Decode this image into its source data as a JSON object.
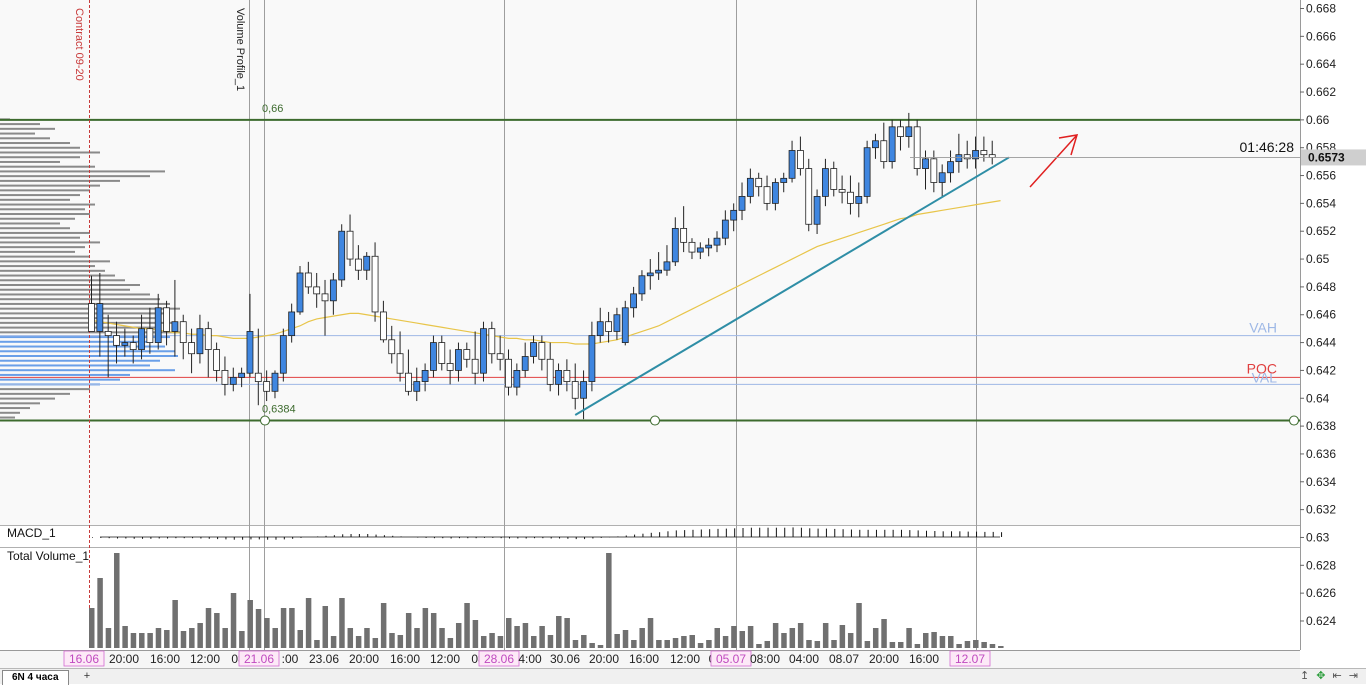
{
  "instrument_tab": "6N 4 часа",
  "add_tab_label": "+",
  "nav_icons": [
    "arrow-up-icon",
    "expand-icon",
    "scroll-left-icon",
    "scroll-right-icon"
  ],
  "colors": {
    "bull": "#3f86e0",
    "bear": "#ffffff",
    "sma": "#e8c54a",
    "trendline": "#2f8ea6",
    "level": "#3d6b2e",
    "vah_val": "#9eb8e6",
    "poc": "#e04040",
    "arrow": "#e02020",
    "profile": "#8a8a8a",
    "profile_value_area": "#6a9fe8",
    "volume": "#707070"
  },
  "chart_data": {
    "type": "candlestick",
    "timeframe": "4h",
    "y_ticks": [
      0.668,
      0.666,
      0.664,
      0.662,
      0.66,
      0.658,
      0.656,
      0.654,
      0.652,
      0.65,
      0.648,
      0.646,
      0.644,
      0.642,
      0.64,
      0.638,
      0.636,
      0.634,
      0.632,
      0.63,
      0.628,
      0.626,
      0.624
    ],
    "ylim": [
      0.6221,
      0.6693
    ],
    "last_price": "0.6573",
    "countdown": "01:46:28",
    "x_labels": [
      {
        "text": "16.06",
        "highlight": true
      },
      {
        "text": "20:00",
        "highlight": false
      },
      {
        "text": "16:00",
        "highlight": false
      },
      {
        "text": "12:00",
        "highlight": false
      },
      {
        "text": "08",
        "highlight": false
      },
      {
        "text": "21.06",
        "highlight": true
      },
      {
        "text": ":00",
        "highlight": false
      },
      {
        "text": "23.06",
        "highlight": false
      },
      {
        "text": "20:00",
        "highlight": false
      },
      {
        "text": "16:00",
        "highlight": false
      },
      {
        "text": "12:00",
        "highlight": false
      },
      {
        "text": "08",
        "highlight": false
      },
      {
        "text": "28.06",
        "highlight": true
      },
      {
        "text": "4:00",
        "highlight": false
      },
      {
        "text": "30.06",
        "highlight": false
      },
      {
        "text": "20:00",
        "highlight": false
      },
      {
        "text": "16:00",
        "highlight": false
      },
      {
        "text": "12:00",
        "highlight": false
      },
      {
        "text": "0",
        "highlight": false
      },
      {
        "text": "05.07",
        "highlight": true
      },
      {
        "text": "08:00",
        "highlight": false
      },
      {
        "text": "04:00",
        "highlight": false
      },
      {
        "text": "08.07",
        "highlight": false
      },
      {
        "text": "20:00",
        "highlight": false
      },
      {
        "text": "16:00",
        "highlight": false
      },
      {
        "text": "12.07",
        "highlight": true
      }
    ],
    "annotations": {
      "contract_label": "Contract 09-20",
      "volume_profile_label": "Volume Profile_1",
      "level_high": "0,66",
      "level_low": "0,6384",
      "vah": "VAH",
      "poc": "POC",
      "val": "VAL",
      "vah_price": 0.6445,
      "poc_price": 0.6415,
      "val_price": 0.641,
      "level_high_price": 0.66,
      "level_low_price": 0.6384
    },
    "macd_label": "MACD_1",
    "volume_label": "Total Volume_1",
    "candles": [
      [
        0.6468,
        0.6488,
        0.6452,
        0.6448
      ],
      [
        0.6448,
        0.649,
        0.643,
        0.6468
      ],
      [
        0.6448,
        0.646,
        0.6415,
        0.6445
      ],
      [
        0.6445,
        0.6455,
        0.6425,
        0.6438
      ],
      [
        0.6438,
        0.645,
        0.643,
        0.644
      ],
      [
        0.644,
        0.6445,
        0.6425,
        0.6435
      ],
      [
        0.6435,
        0.646,
        0.6428,
        0.645
      ],
      [
        0.645,
        0.6465,
        0.6432,
        0.644
      ],
      [
        0.644,
        0.6475,
        0.6435,
        0.6465
      ],
      [
        0.6465,
        0.647,
        0.6438,
        0.6448
      ],
      [
        0.6448,
        0.6485,
        0.643,
        0.6455
      ],
      [
        0.6455,
        0.646,
        0.6428,
        0.644
      ],
      [
        0.644,
        0.645,
        0.6418,
        0.6432
      ],
      [
        0.6432,
        0.646,
        0.6425,
        0.645
      ],
      [
        0.645,
        0.6455,
        0.6415,
        0.6435
      ],
      [
        0.6435,
        0.644,
        0.6412,
        0.642
      ],
      [
        0.642,
        0.643,
        0.6402,
        0.641
      ],
      [
        0.641,
        0.6422,
        0.6405,
        0.6415
      ],
      [
        0.6415,
        0.6422,
        0.6408,
        0.6418
      ],
      [
        0.6418,
        0.6475,
        0.6415,
        0.6448
      ],
      [
        0.6418,
        0.645,
        0.6395,
        0.6412
      ],
      [
        0.6412,
        0.642,
        0.6398,
        0.6405
      ],
      [
        0.6405,
        0.642,
        0.64,
        0.6418
      ],
      [
        0.6418,
        0.645,
        0.6412,
        0.6445
      ],
      [
        0.6445,
        0.6468,
        0.644,
        0.6462
      ],
      [
        0.6462,
        0.6495,
        0.646,
        0.649
      ],
      [
        0.649,
        0.6498,
        0.6475,
        0.648
      ],
      [
        0.648,
        0.649,
        0.6465,
        0.6475
      ],
      [
        0.6475,
        0.6485,
        0.6445,
        0.647
      ],
      [
        0.647,
        0.649,
        0.646,
        0.6485
      ],
      [
        0.6485,
        0.6525,
        0.648,
        0.652
      ],
      [
        0.652,
        0.6532,
        0.6495,
        0.65
      ],
      [
        0.65,
        0.651,
        0.6485,
        0.6492
      ],
      [
        0.6492,
        0.6505,
        0.6485,
        0.6502
      ],
      [
        0.6502,
        0.6512,
        0.6455,
        0.6462
      ],
      [
        0.6462,
        0.647,
        0.644,
        0.6442
      ],
      [
        0.6442,
        0.6452,
        0.6425,
        0.6432
      ],
      [
        0.6432,
        0.6448,
        0.6412,
        0.6418
      ],
      [
        0.6418,
        0.6435,
        0.6402,
        0.6405
      ],
      [
        0.6405,
        0.6422,
        0.6398,
        0.6412
      ],
      [
        0.6412,
        0.6425,
        0.6405,
        0.642
      ],
      [
        0.642,
        0.6445,
        0.6415,
        0.644
      ],
      [
        0.644,
        0.6445,
        0.642,
        0.6425
      ],
      [
        0.6425,
        0.6435,
        0.641,
        0.642
      ],
      [
        0.642,
        0.644,
        0.6412,
        0.6435
      ],
      [
        0.6435,
        0.644,
        0.6422,
        0.6428
      ],
      [
        0.6428,
        0.6448,
        0.641,
        0.6418
      ],
      [
        0.6418,
        0.6455,
        0.6412,
        0.645
      ],
      [
        0.645,
        0.6455,
        0.6425,
        0.6432
      ],
      [
        0.6432,
        0.6445,
        0.642,
        0.6428
      ],
      [
        0.6428,
        0.6435,
        0.6402,
        0.6408
      ],
      [
        0.6408,
        0.6425,
        0.6402,
        0.642
      ],
      [
        0.642,
        0.644,
        0.6415,
        0.643
      ],
      [
        0.643,
        0.6445,
        0.6425,
        0.644
      ],
      [
        0.644,
        0.6445,
        0.642,
        0.6428
      ],
      [
        0.6428,
        0.644,
        0.6405,
        0.641
      ],
      [
        0.641,
        0.6425,
        0.6402,
        0.642
      ],
      [
        0.642,
        0.6428,
        0.6405,
        0.6412
      ],
      [
        0.6412,
        0.6425,
        0.6392,
        0.64
      ],
      [
        0.64,
        0.642,
        0.6385,
        0.6412
      ],
      [
        0.6412,
        0.6455,
        0.6405,
        0.6445
      ],
      [
        0.6445,
        0.6465,
        0.644,
        0.6455
      ],
      [
        0.6455,
        0.6462,
        0.644,
        0.6448
      ],
      [
        0.6448,
        0.6465,
        0.6442,
        0.646
      ],
      [
        0.644,
        0.647,
        0.6438,
        0.6465
      ],
      [
        0.6465,
        0.648,
        0.6458,
        0.6475
      ],
      [
        0.6475,
        0.6492,
        0.647,
        0.6488
      ],
      [
        0.6488,
        0.65,
        0.6478,
        0.649
      ],
      [
        0.649,
        0.6505,
        0.6485,
        0.6492
      ],
      [
        0.6492,
        0.651,
        0.6488,
        0.6498
      ],
      [
        0.6498,
        0.653,
        0.6495,
        0.6522
      ],
      [
        0.6522,
        0.6538,
        0.6505,
        0.6512
      ],
      [
        0.6512,
        0.6515,
        0.65,
        0.6505
      ],
      [
        0.6505,
        0.6512,
        0.65,
        0.6508
      ],
      [
        0.6508,
        0.6515,
        0.6502,
        0.651
      ],
      [
        0.651,
        0.652,
        0.6505,
        0.6515
      ],
      [
        0.6515,
        0.6535,
        0.651,
        0.6528
      ],
      [
        0.6528,
        0.654,
        0.652,
        0.6535
      ],
      [
        0.6535,
        0.6555,
        0.6528,
        0.6545
      ],
      [
        0.6545,
        0.6565,
        0.654,
        0.6558
      ],
      [
        0.6558,
        0.6562,
        0.6545,
        0.6552
      ],
      [
        0.6552,
        0.656,
        0.6535,
        0.654
      ],
      [
        0.654,
        0.6558,
        0.6535,
        0.6555
      ],
      [
        0.6555,
        0.6562,
        0.6548,
        0.6558
      ],
      [
        0.6558,
        0.6585,
        0.6555,
        0.6578
      ],
      [
        0.6578,
        0.6588,
        0.656,
        0.6565
      ],
      [
        0.6565,
        0.6572,
        0.652,
        0.6525
      ],
      [
        0.6525,
        0.655,
        0.6518,
        0.6545
      ],
      [
        0.6545,
        0.6572,
        0.6538,
        0.6565
      ],
      [
        0.6565,
        0.657,
        0.6545,
        0.655
      ],
      [
        0.655,
        0.656,
        0.654,
        0.6548
      ],
      [
        0.6548,
        0.656,
        0.6532,
        0.654
      ],
      [
        0.654,
        0.6555,
        0.653,
        0.6545
      ],
      [
        0.6545,
        0.6585,
        0.654,
        0.658
      ],
      [
        0.658,
        0.659,
        0.6572,
        0.6585
      ],
      [
        0.6585,
        0.6598,
        0.6565,
        0.657
      ],
      [
        0.657,
        0.66,
        0.6565,
        0.6595
      ],
      [
        0.6595,
        0.66,
        0.6578,
        0.6588
      ],
      [
        0.6588,
        0.6605,
        0.658,
        0.6595
      ],
      [
        0.6595,
        0.66,
        0.656,
        0.6565
      ],
      [
        0.6565,
        0.6578,
        0.655,
        0.6572
      ],
      [
        0.6572,
        0.6578,
        0.6548,
        0.6555
      ],
      [
        0.6555,
        0.6568,
        0.6545,
        0.6562
      ],
      [
        0.6562,
        0.6578,
        0.6555,
        0.657
      ],
      [
        0.657,
        0.659,
        0.6562,
        0.6575
      ],
      [
        0.6575,
        0.6585,
        0.6565,
        0.6572
      ],
      [
        0.6572,
        0.6588,
        0.6565,
        0.6578
      ],
      [
        0.6578,
        0.6588,
        0.657,
        0.6575
      ],
      [
        0.6575,
        0.6585,
        0.6568,
        0.6573
      ]
    ],
    "volumes": [
      40,
      70,
      20,
      95,
      22,
      15,
      15,
      15,
      20,
      18,
      48,
      17,
      20,
      25,
      40,
      35,
      20,
      55,
      17,
      48,
      39,
      30,
      20,
      40,
      40,
      18,
      50,
      8,
      42,
      12,
      50,
      20,
      12,
      20,
      10,
      45,
      15,
      13,
      35,
      20,
      40,
      35,
      20,
      10,
      25,
      45,
      28,
      12,
      15,
      12,
      30,
      22,
      25,
      12,
      22,
      13,
      32,
      30,
      8,
      13,
      5,
      3,
      95,
      14,
      18,
      8,
      20,
      30,
      8,
      8,
      10,
      12,
      13,
      5,
      8,
      20,
      12,
      22,
      17,
      22,
      4,
      7,
      25,
      15,
      20,
      25,
      8,
      7,
      25,
      8,
      23,
      15,
      45,
      7,
      20,
      29,
      6,
      6,
      20,
      4,
      15,
      16,
      12,
      12,
      4,
      7,
      8,
      6,
      4,
      2
    ],
    "sma": [
      0.6456,
      0.6455,
      0.6454,
      0.6453,
      0.6452,
      0.6451,
      0.645,
      0.645,
      0.6449,
      0.6448,
      0.6447,
      0.6447,
      0.6446,
      0.6446,
      0.6445,
      0.6445,
      0.6444,
      0.6443,
      0.6443,
      0.6443,
      0.6444,
      0.6445,
      0.6446,
      0.6448,
      0.645,
      0.6452,
      0.6455,
      0.6457,
      0.6458,
      0.6459,
      0.646,
      0.6461,
      0.6461,
      0.646,
      0.6459,
      0.6458,
      0.6457,
      0.6456,
      0.6455,
      0.6454,
      0.6453,
      0.6452,
      0.6451,
      0.645,
      0.6449,
      0.6448,
      0.6447,
      0.6446,
      0.6445,
      0.6444,
      0.6443,
      0.6443,
      0.6442,
      0.6442,
      0.6441,
      0.644,
      0.644,
      0.644,
      0.6439,
      0.6439,
      0.6439,
      0.644,
      0.6441,
      0.6442,
      0.6444,
      0.6446,
      0.6448,
      0.645,
      0.6452,
      0.6455,
      0.6458,
      0.6461,
      0.6464,
      0.6467,
      0.647,
      0.6473,
      0.6476,
      0.6479,
      0.6482,
      0.6485,
      0.6488,
      0.6491,
      0.6494,
      0.6497,
      0.65,
      0.6503,
      0.6506,
      0.6509,
      0.6511,
      0.6513,
      0.6515,
      0.6517,
      0.6519,
      0.6521,
      0.6523,
      0.6525,
      0.6527,
      0.6529,
      0.653,
      0.6532,
      0.6533,
      0.6534,
      0.6535,
      0.6536,
      0.6537,
      0.6538,
      0.6539,
      0.654,
      0.6541,
      0.6542
    ],
    "macd": [
      -0.0002,
      -0.0003,
      -0.0004,
      -0.0005,
      -0.0005,
      -0.0006,
      -0.0006,
      -0.0006,
      -0.0005,
      -0.0005,
      -0.0004,
      -0.0004,
      -0.0004,
      -0.0005,
      -0.0006,
      -0.0007,
      -0.0008,
      -0.0009,
      -0.0009,
      -0.0008,
      -0.0008,
      -0.0009,
      -0.0009,
      -0.0008,
      -0.0006,
      -0.0003,
      0,
      0.0002,
      0.0004,
      0.0006,
      0.0009,
      0.001,
      0.001,
      0.001,
      0.0008,
      0.0006,
      0.0004,
      0.0002,
      0,
      -0.0002,
      -0.0003,
      -0.0004,
      -0.0004,
      -0.0005,
      -0.0004,
      -0.0004,
      -0.0004,
      -0.0003,
      -0.0003,
      -0.0004,
      -0.0005,
      -0.0005,
      -0.0005,
      -0.0004,
      -0.0004,
      -0.0005,
      -0.0005,
      -0.0006,
      -0.0007,
      -0.0007,
      -0.0005,
      -0.0003,
      -0.0001,
      0.0002,
      0.0005,
      0.0008,
      0.0011,
      0.0014,
      0.0016,
      0.0019,
      0.0022,
      0.0023,
      0.0024,
      0.0025,
      0.0026,
      0.0027,
      0.0028,
      0.0029,
      0.003,
      0.0031,
      0.0031,
      0.0031,
      0.0031,
      0.0031,
      0.0032,
      0.0031,
      0.0029,
      0.0028,
      0.0028,
      0.0027,
      0.0026,
      0.0025,
      0.0024,
      0.0024,
      0.0024,
      0.0024,
      0.0024,
      0.0024,
      0.0023,
      0.0022,
      0.0021,
      0.002,
      0.0019,
      0.0019,
      0.0019,
      0.0018,
      0.0018,
      0.0017,
      0.0017,
      0.0016
    ],
    "trendline": [
      [
        58,
        0.6388
      ],
      [
        110,
        0.6573
      ]
    ],
    "arrow": [
      [
        0.6562,
        0.6568
      ],
      [
        0.6597,
        0.6594
      ]
    ],
    "profile_volumes": [
      10,
      40,
      55,
      35,
      50,
      70,
      80,
      100,
      80,
      60,
      95,
      165,
      150,
      120,
      100,
      90,
      80,
      70,
      95,
      85,
      90,
      75,
      60,
      70,
      90,
      80,
      100,
      85,
      75,
      90,
      110,
      95,
      105,
      115,
      125,
      140,
      130,
      150,
      160,
      170,
      180,
      170,
      160,
      175,
      160,
      180,
      170,
      150,
      165,
      175,
      178,
      160,
      150,
      175,
      130,
      120,
      100,
      90,
      70,
      55,
      40,
      30,
      20,
      15
    ]
  }
}
